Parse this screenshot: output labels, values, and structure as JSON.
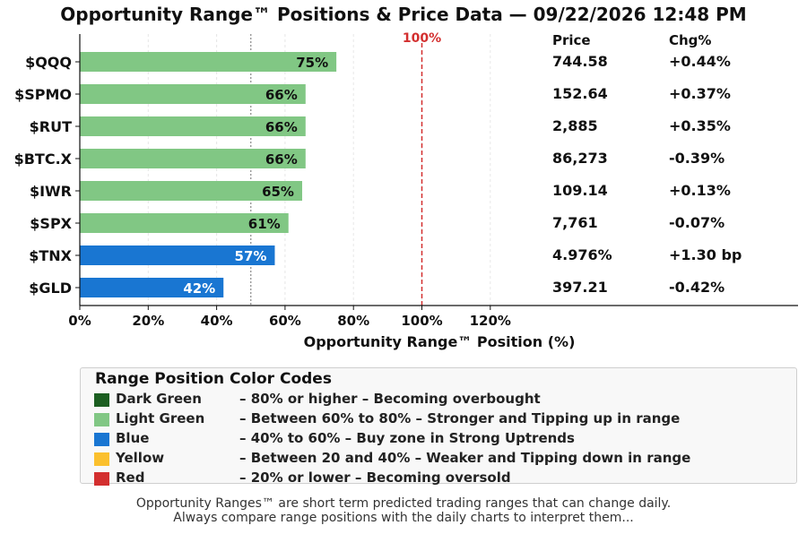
{
  "title": "Opportunity Range™ Positions & Price Data — 09/22/2026 12:48 PM",
  "chart_data": {
    "type": "bar",
    "orientation": "horizontal",
    "categories": [
      "$QQQ",
      "$SPMO",
      "$RUT",
      "$BTC.X",
      "$IWR",
      "$SPX",
      "$TNX",
      "$GLD"
    ],
    "values": [
      75,
      66,
      66,
      66,
      65,
      61,
      57,
      42
    ],
    "value_labels": [
      "75%",
      "66%",
      "66%",
      "66%",
      "65%",
      "61%",
      "57%",
      "42%"
    ],
    "bar_colors": [
      "#81c784",
      "#81c784",
      "#81c784",
      "#81c784",
      "#81c784",
      "#81c784",
      "#1976d2",
      "#1976d2"
    ],
    "label_colors": [
      "#111111",
      "#111111",
      "#111111",
      "#111111",
      "#111111",
      "#111111",
      "#ffffff",
      "#ffffff"
    ],
    "xlabel": "Opportunity Range™ Position (%)",
    "xticks": [
      "0%",
      "20%",
      "40%",
      "60%",
      "80%",
      "100%",
      "120%"
    ],
    "xlim": [
      0,
      210
    ],
    "reference_line": {
      "value": 100,
      "label": "100%",
      "color": "#d32f2f"
    },
    "midline": {
      "value": 50
    },
    "grid": "vertical dashed",
    "table": {
      "headers": [
        "Price",
        "Chg%"
      ],
      "rows": [
        [
          "744.58",
          "+0.44%"
        ],
        [
          "152.64",
          "+0.37%"
        ],
        [
          "2,885",
          "+0.35%"
        ],
        [
          "86,273",
          "-0.39%"
        ],
        [
          "109.14",
          "+0.13%"
        ],
        [
          "7,761",
          "-0.07%"
        ],
        [
          "4.976%",
          "+1.30 bp"
        ],
        [
          "397.21",
          "-0.42%"
        ]
      ]
    }
  },
  "legend": {
    "title": "Range Position Color Codes",
    "items": [
      {
        "color": "#1b5e20",
        "name": "Dark Green",
        "desc": "–  80% or higher  –  Becoming overbought"
      },
      {
        "color": "#81c784",
        "name": "Light Green",
        "desc": "–  Between 60% to 80%  –  Stronger and Tipping up in range"
      },
      {
        "color": "#1976d2",
        "name": "Blue",
        "desc": "–  40% to 60%  –  Buy zone in Strong Uptrends"
      },
      {
        "color": "#fbc02d",
        "name": "Yellow",
        "desc": "–  Between 20 and 40%  –  Weaker and Tipping down in range"
      },
      {
        "color": "#d32f2f",
        "name": "Red",
        "desc": "–  20% or lower  –  Becoming oversold"
      }
    ]
  },
  "footer": [
    "Opportunity Ranges™ are short term predicted trading ranges that can change daily.",
    "Always compare range positions with the daily charts to interpret them..."
  ]
}
